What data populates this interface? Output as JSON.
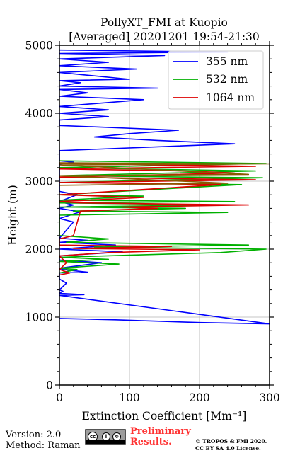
{
  "chart_data": {
    "type": "line",
    "title": "PollyXT_FMI at Kuopio",
    "subtitle": "[Averaged] 20201201 19:54-21:30",
    "xlabel": "Extinction Coefficient [Mm⁻¹]",
    "ylabel": "Height (m)",
    "xlim": [
      0,
      300
    ],
    "ylim": [
      0,
      5000
    ],
    "xticks": [
      "0",
      "100",
      "200",
      "300"
    ],
    "yticks": [
      "0",
      "1000",
      "2000",
      "3000",
      "4000",
      "5000"
    ],
    "grid": true,
    "legend_position": "top-right",
    "series": [
      {
        "name": "355 nm",
        "color": "#0000ff",
        "points": [
          [
            0,
            980
          ],
          [
            80,
            960
          ],
          [
            200,
            920
          ],
          [
            300,
            900
          ],
          [
            0,
            1320
          ],
          [
            35,
            1330
          ],
          [
            0,
            1350
          ],
          [
            5,
            1380
          ],
          [
            0,
            1400
          ],
          [
            10,
            1500
          ],
          [
            0,
            1560
          ],
          [
            0,
            1650
          ],
          [
            40,
            1660
          ],
          [
            5,
            1700
          ],
          [
            0,
            1720
          ],
          [
            60,
            1800
          ],
          [
            0,
            1840
          ],
          [
            0,
            1900
          ],
          [
            90,
            1960
          ],
          [
            0,
            2000
          ],
          [
            80,
            2060
          ],
          [
            0,
            2100
          ],
          [
            40,
            2130
          ],
          [
            0,
            2160
          ],
          [
            20,
            2400
          ],
          [
            0,
            2450
          ],
          [
            30,
            2550
          ],
          [
            0,
            2600
          ],
          [
            20,
            2650
          ],
          [
            0,
            2700
          ],
          [
            25,
            2800
          ],
          [
            0,
            2850
          ],
          [
            0,
            3250
          ],
          [
            20,
            3280
          ],
          [
            0,
            3300
          ],
          [
            0,
            3450
          ],
          [
            250,
            3550
          ],
          [
            140,
            3600
          ],
          [
            50,
            3650
          ],
          [
            100,
            3700
          ],
          [
            170,
            3750
          ],
          [
            50,
            3800
          ],
          [
            0,
            3820
          ],
          [
            0,
            3900
          ],
          [
            70,
            3950
          ],
          [
            0,
            4000
          ],
          [
            70,
            4050
          ],
          [
            0,
            4100
          ],
          [
            120,
            4200
          ],
          [
            0,
            4250
          ],
          [
            40,
            4300
          ],
          [
            0,
            4350
          ],
          [
            140,
            4370
          ],
          [
            0,
            4400
          ],
          [
            30,
            4450
          ],
          [
            0,
            4480
          ],
          [
            100,
            4500
          ],
          [
            0,
            4600
          ],
          [
            110,
            4650
          ],
          [
            0,
            4700
          ],
          [
            70,
            4750
          ],
          [
            0,
            4800
          ],
          [
            150,
            4850
          ],
          [
            0,
            4880
          ],
          [
            240,
            4900
          ],
          [
            0,
            4930
          ]
        ]
      },
      {
        "name": "532 nm",
        "color": "#00b000",
        "points": [
          [
            0,
            1650
          ],
          [
            25,
            1700
          ],
          [
            0,
            1720
          ],
          [
            85,
            1780
          ],
          [
            0,
            1820
          ],
          [
            70,
            1850
          ],
          [
            0,
            1880
          ],
          [
            230,
            1950
          ],
          [
            295,
            2000
          ],
          [
            50,
            2030
          ],
          [
            270,
            2060
          ],
          [
            10,
            2100
          ],
          [
            70,
            2150
          ],
          [
            0,
            2200
          ],
          [
            0,
            2500
          ],
          [
            240,
            2540
          ],
          [
            20,
            2560
          ],
          [
            180,
            2600
          ],
          [
            0,
            2620
          ],
          [
            230,
            2650
          ],
          [
            0,
            2680
          ],
          [
            250,
            2700
          ],
          [
            0,
            2720
          ],
          [
            120,
            2780
          ],
          [
            0,
            2800
          ],
          [
            260,
            2950
          ],
          [
            0,
            2980
          ],
          [
            290,
            3050
          ],
          [
            0,
            3080
          ],
          [
            280,
            3150
          ],
          [
            0,
            3200
          ],
          [
            295,
            3260
          ],
          [
            0,
            3300
          ]
        ]
      },
      {
        "name": "1064 nm",
        "color": "#dd0000",
        "points": [
          [
            0,
            1620
          ],
          [
            15,
            1650
          ],
          [
            0,
            1700
          ],
          [
            10,
            1800
          ],
          [
            0,
            1900
          ],
          [
            70,
            1950
          ],
          [
            200,
            1990
          ],
          [
            20,
            2010
          ],
          [
            160,
            2040
          ],
          [
            0,
            2060
          ],
          [
            0,
            2150
          ],
          [
            20,
            2200
          ],
          [
            30,
            2560
          ],
          [
            140,
            2600
          ],
          [
            90,
            2620
          ],
          [
            270,
            2650
          ],
          [
            30,
            2680
          ],
          [
            0,
            2700
          ],
          [
            40,
            2720
          ],
          [
            120,
            2760
          ],
          [
            0,
            2800
          ],
          [
            230,
            2950
          ],
          [
            0,
            2980
          ],
          [
            280,
            3020
          ],
          [
            0,
            3060
          ],
          [
            250,
            3120
          ],
          [
            180,
            3150
          ],
          [
            0,
            3180
          ],
          [
            280,
            3220
          ],
          [
            0,
            3260
          ]
        ]
      },
      {
        "name": "",
        "color": "#8a5a00",
        "points": [
          [
            0,
            3270
          ],
          [
            300,
            3255
          ],
          [
            0,
            3240
          ],
          [
            270,
            3100
          ],
          [
            0,
            3080
          ],
          [
            240,
            2970
          ],
          [
            0,
            2940
          ]
        ]
      }
    ]
  },
  "footer": {
    "version": "Version: 2.0",
    "method": "Method: Raman",
    "preliminary_line1": "Preliminary",
    "preliminary_line2": "Results.",
    "copyright_line1": "© TROPOS & FMI 2020.",
    "copyright_line2": "CC BY SA 4.0 License.",
    "license_icon": "cc-by-sa-icon"
  }
}
